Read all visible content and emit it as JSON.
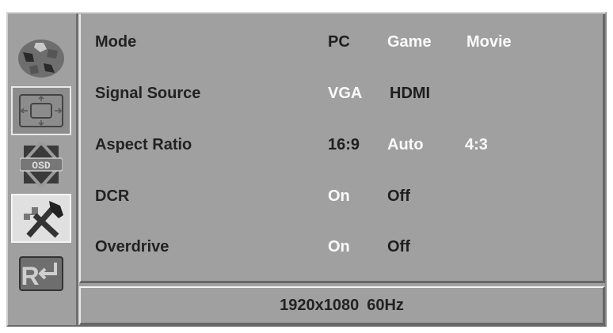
{
  "sidebar": {
    "icons": [
      "picture-icon",
      "geometry-icon",
      "osd-icon",
      "settings-tools-icon",
      "reset-icon"
    ],
    "selected": "settings-tools-icon",
    "reset_glyph": "R"
  },
  "colors": {
    "selected_option": "#1e1e1e",
    "unselected_option": "#fafafa",
    "background": "#a0a0a0"
  },
  "rows": [
    {
      "label": "Mode",
      "options": [
        {
          "text": "PC",
          "selected": true
        },
        {
          "text": "Game",
          "selected": false
        },
        {
          "text": "Movie",
          "selected": false
        }
      ]
    },
    {
      "label": "Signal Source",
      "options": [
        {
          "text": "VGA",
          "selected": false
        },
        {
          "text": "HDMI",
          "selected": true
        }
      ]
    },
    {
      "label": "Aspect Ratio",
      "options": [
        {
          "text": "16:9",
          "selected": true
        },
        {
          "text": "Auto",
          "selected": false
        },
        {
          "text": "4:3",
          "selected": false
        }
      ]
    },
    {
      "label": "DCR",
      "options": [
        {
          "text": "On",
          "selected": false
        },
        {
          "text": "Off",
          "selected": true
        }
      ]
    },
    {
      "label": "Overdrive",
      "options": [
        {
          "text": "On",
          "selected": false
        },
        {
          "text": "Off",
          "selected": true
        }
      ]
    }
  ],
  "status": {
    "resolution": "1920x1080",
    "refresh": "60Hz"
  }
}
